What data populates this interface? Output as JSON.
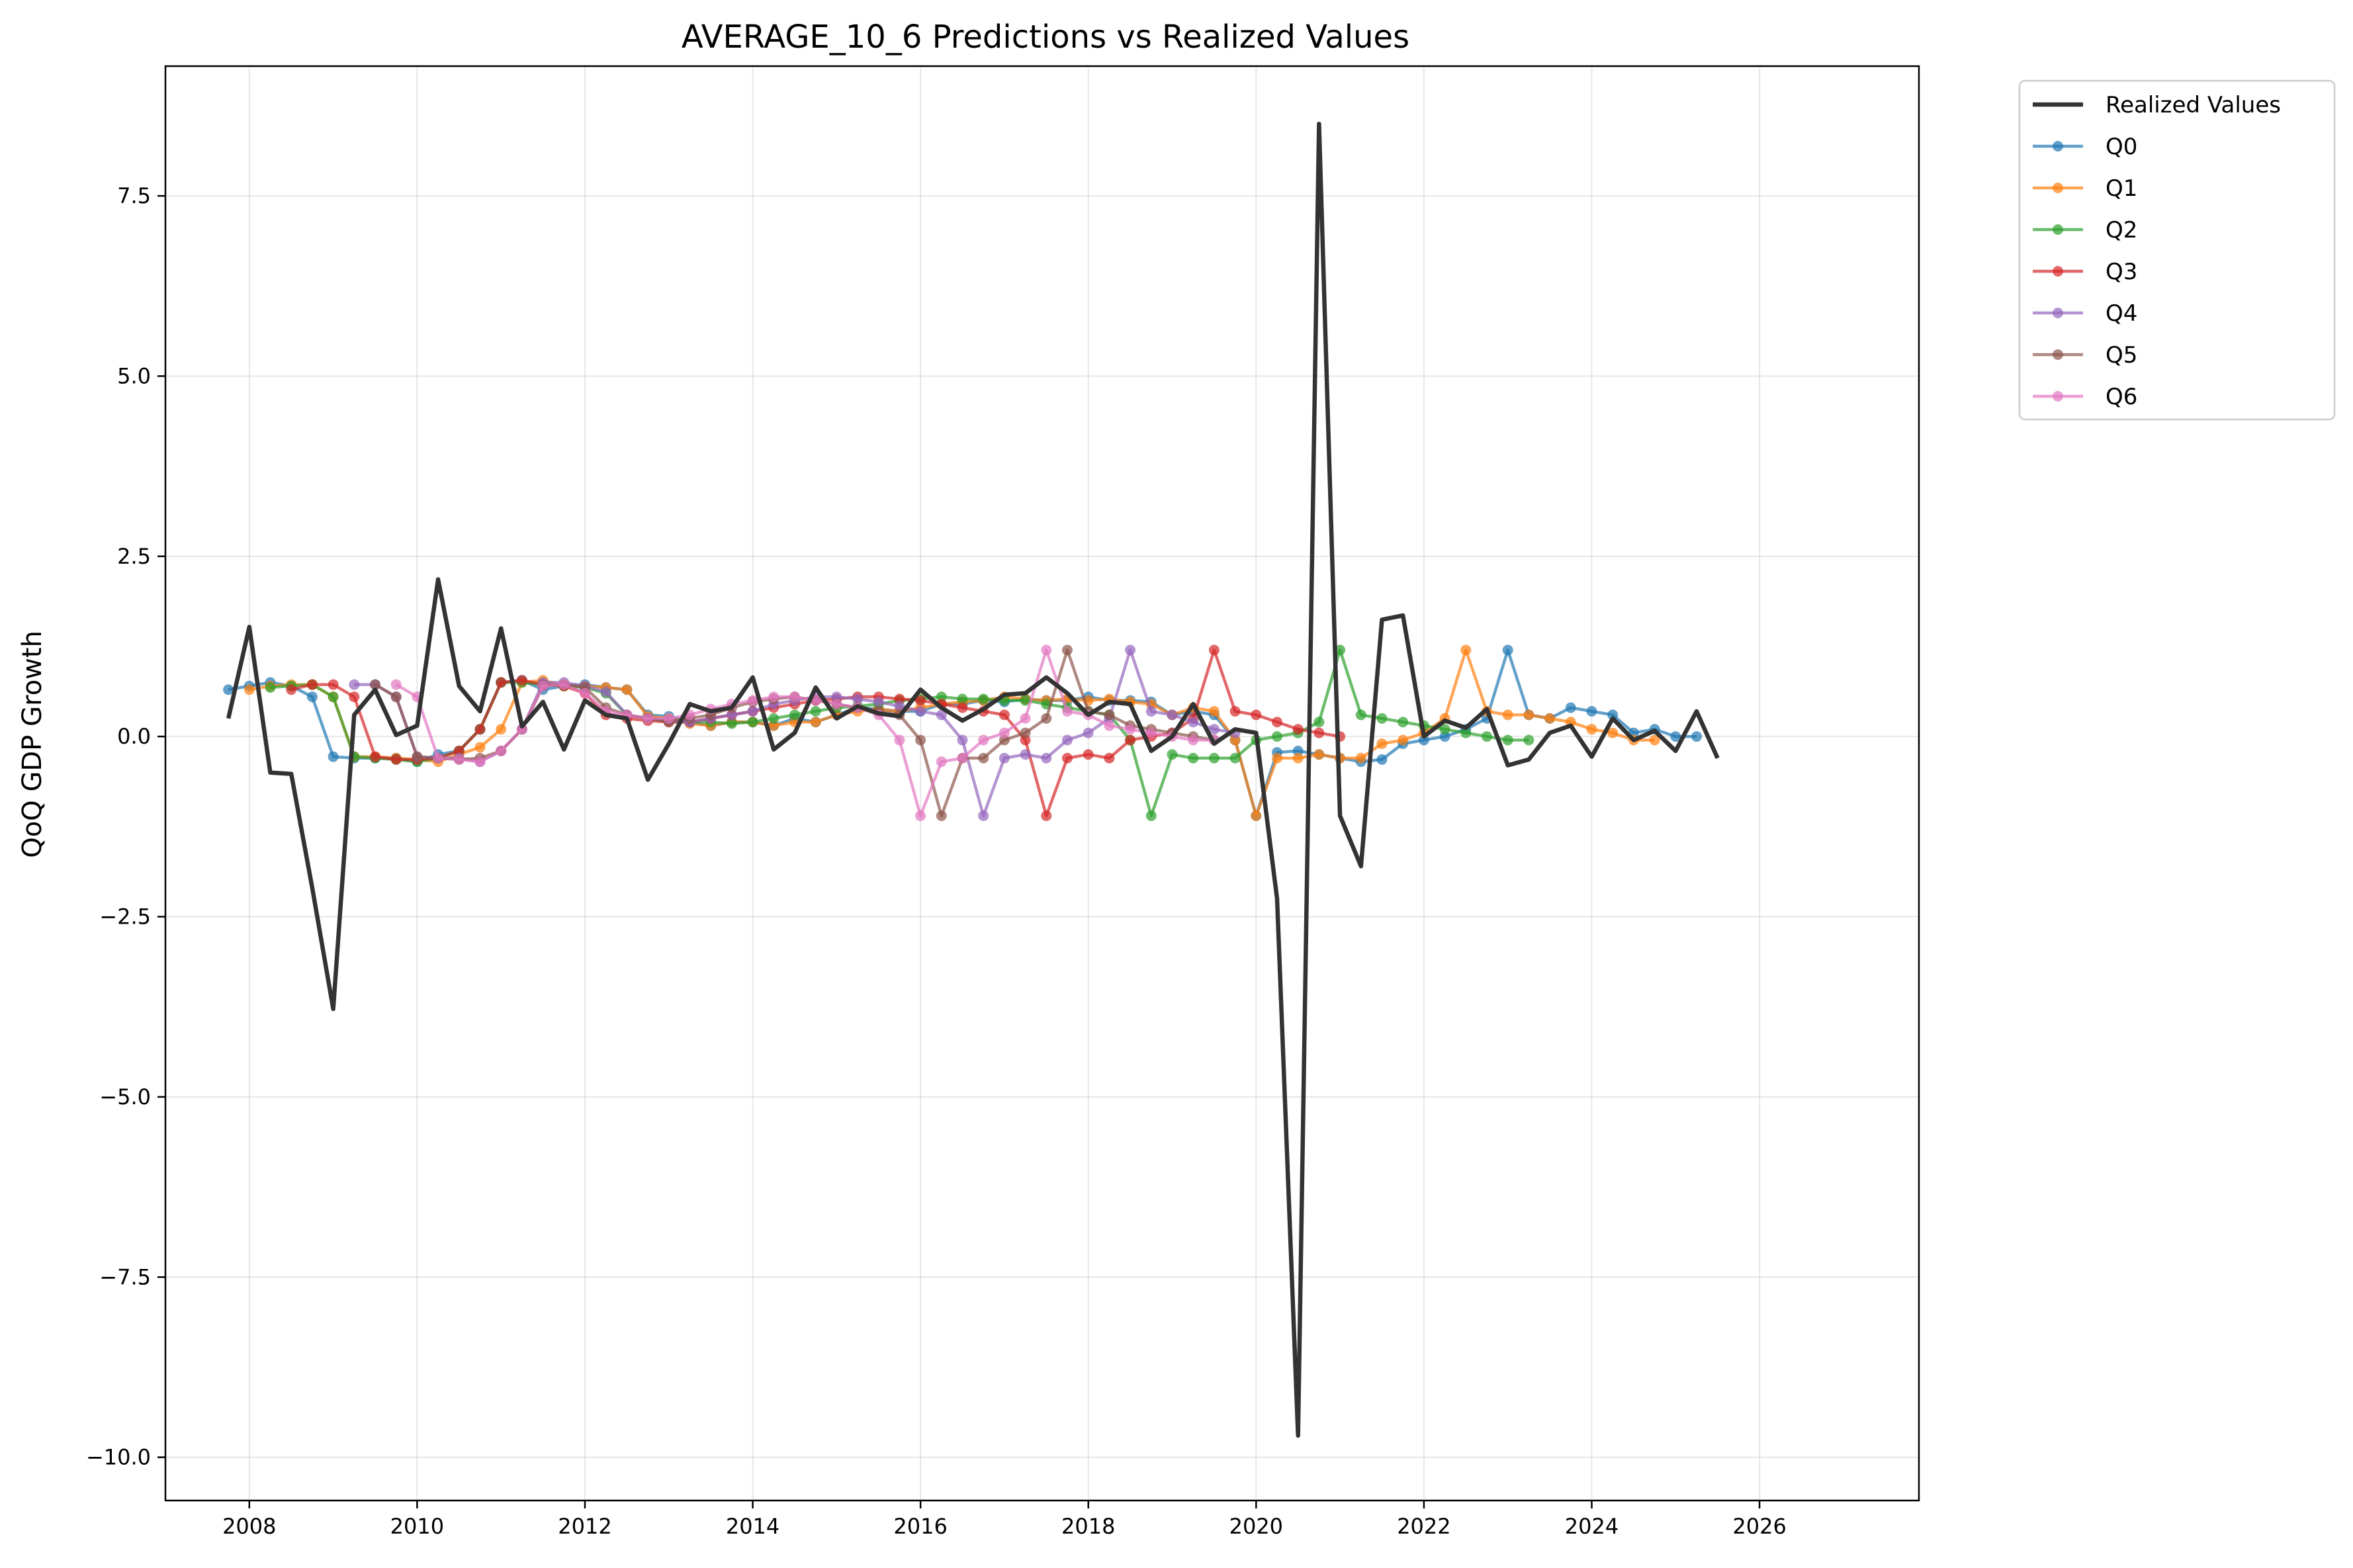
{
  "chart_data": {
    "type": "line",
    "title": "AVERAGE_10_6 Predictions vs Realized Values",
    "xlabel": "",
    "ylabel": "QoQ GDP Growth",
    "xlim": [
      2007.0,
      2027.9
    ],
    "ylim": [
      -10.6,
      9.3
    ],
    "x_ticks": [
      2008,
      2010,
      2012,
      2014,
      2016,
      2018,
      2020,
      2022,
      2024,
      2026
    ],
    "x_tick_labels": [
      "2008",
      "2010",
      "2012",
      "2014",
      "2016",
      "2018",
      "2020",
      "2022",
      "2024",
      "2026"
    ],
    "y_ticks": [
      7.5,
      5.0,
      2.5,
      0.0,
      -2.5,
      -5.0,
      -7.5,
      -10.0
    ],
    "y_tick_labels": [
      "7.5",
      "5.0",
      "2.5",
      "0.0",
      "−2.5",
      "−5.0",
      "−7.5",
      "−10.0"
    ],
    "grid": true,
    "legend_position": "outside-top-right",
    "realized": {
      "name": "Realized Values",
      "color": "#333333",
      "start": "2007-10",
      "values": [
        0.25,
        1.52,
        -0.5,
        -0.52,
        -2.1,
        -3.78,
        0.3,
        0.65,
        0.02,
        0.15,
        2.18,
        0.7,
        0.35,
        1.5,
        0.14,
        0.48,
        -0.18,
        0.5,
        0.3,
        0.25,
        -0.6,
        -0.1,
        0.45,
        0.35,
        0.4,
        0.82,
        -0.18,
        0.05,
        0.68,
        0.25,
        0.42,
        0.32,
        0.28,
        0.65,
        0.4,
        0.22,
        0.38,
        0.58,
        0.6,
        0.82,
        0.6,
        0.3,
        0.48,
        0.45,
        -0.2,
        0.0,
        0.45,
        -0.1,
        0.1,
        0.05,
        -2.25,
        -9.7,
        8.5,
        -1.1,
        -1.8,
        1.62,
        1.68,
        0.0,
        0.22,
        0.12,
        0.38,
        -0.4,
        -0.32,
        0.05,
        0.15,
        -0.28,
        0.25,
        -0.05,
        0.08,
        -0.2,
        0.35,
        -0.3
      ]
    },
    "prediction_series": [
      {
        "name": "Q0",
        "color": "#1f77b4",
        "start": "2007-10",
        "values": [
          0.65,
          0.7,
          0.75,
          0.7,
          0.55,
          -0.28,
          -0.3,
          -0.3,
          -0.3,
          -0.35,
          -0.25,
          -0.2,
          0.1,
          0.75,
          0.78,
          0.65,
          0.7,
          0.72,
          0.68,
          0.65,
          0.3,
          0.28,
          0.2,
          0.15,
          0.2,
          0.2,
          0.15,
          0.25,
          0.2,
          0.3,
          0.4,
          0.38,
          0.35,
          0.35,
          0.45,
          0.45,
          0.5,
          0.48,
          0.52,
          0.5,
          0.5,
          0.55,
          0.5,
          0.5,
          0.48,
          0.3,
          0.35,
          0.3,
          -0.05,
          -1.1,
          -0.22,
          -0.2,
          -0.25,
          -0.3,
          -0.35,
          -0.32,
          -0.1,
          -0.05,
          0.0,
          0.1,
          0.25,
          1.2,
          0.3,
          0.25,
          0.4,
          0.35,
          0.3,
          0.05,
          0.1,
          0.0,
          0.0
        ]
      },
      {
        "name": "Q1",
        "color": "#ff7f0e",
        "start": "2008-01",
        "values": [
          0.65,
          0.7,
          0.72,
          0.72,
          0.55,
          -0.28,
          -0.28,
          -0.3,
          -0.32,
          -0.35,
          -0.25,
          -0.15,
          0.1,
          0.75,
          0.78,
          0.7,
          0.7,
          0.68,
          0.65,
          0.28,
          0.25,
          0.18,
          0.15,
          0.2,
          0.2,
          0.15,
          0.2,
          0.2,
          0.3,
          0.35,
          0.38,
          0.35,
          0.4,
          0.45,
          0.48,
          0.5,
          0.55,
          0.52,
          0.5,
          0.52,
          0.5,
          0.52,
          0.48,
          0.45,
          0.3,
          0.4,
          0.35,
          -0.05,
          -1.1,
          -0.3,
          -0.3,
          -0.25,
          -0.3,
          -0.3,
          -0.1,
          -0.05,
          0.05,
          0.25,
          1.2,
          0.35,
          0.3,
          0.3,
          0.25,
          0.2,
          0.1,
          0.05,
          -0.05,
          -0.05
        ]
      },
      {
        "name": "Q2",
        "color": "#2ca02c",
        "start": "2008-04",
        "values": [
          0.68,
          0.7,
          0.72,
          0.55,
          -0.28,
          -0.3,
          -0.32,
          -0.35,
          -0.3,
          -0.2,
          0.1,
          0.75,
          0.75,
          0.72,
          0.7,
          0.68,
          0.6,
          0.3,
          0.25,
          0.2,
          0.2,
          0.2,
          0.18,
          0.2,
          0.25,
          0.3,
          0.35,
          0.4,
          0.42,
          0.45,
          0.5,
          0.52,
          0.55,
          0.52,
          0.52,
          0.5,
          0.5,
          0.45,
          0.4,
          0.35,
          0.3,
          -0.05,
          -1.1,
          -0.25,
          -0.3,
          -0.3,
          -0.3,
          -0.05,
          0.0,
          0.05,
          0.2,
          1.2,
          0.3,
          0.25,
          0.2,
          0.15,
          0.1,
          0.05,
          0.0,
          -0.05,
          -0.05
        ]
      },
      {
        "name": "Q3",
        "color": "#d62728",
        "start": "2008-07",
        "values": [
          0.65,
          0.72,
          0.72,
          0.55,
          -0.28,
          -0.32,
          -0.32,
          -0.3,
          -0.2,
          0.1,
          0.75,
          0.78,
          0.72,
          0.7,
          0.6,
          0.3,
          0.25,
          0.22,
          0.2,
          0.2,
          0.25,
          0.3,
          0.35,
          0.4,
          0.45,
          0.5,
          0.52,
          0.55,
          0.55,
          0.52,
          0.5,
          0.45,
          0.4,
          0.35,
          0.3,
          -0.05,
          -1.1,
          -0.3,
          -0.25,
          -0.3,
          -0.05,
          0.0,
          0.05,
          0.25,
          1.2,
          0.35,
          0.3,
          0.2,
          0.1,
          0.05,
          0.0
        ]
      },
      {
        "name": "Q4",
        "color": "#9467bd",
        "start": "2009-04",
        "values": [
          0.72,
          0.72,
          0.55,
          -0.28,
          -0.3,
          -0.3,
          -0.35,
          -0.2,
          0.1,
          0.75,
          0.75,
          0.7,
          0.62,
          0.3,
          0.25,
          0.22,
          0.2,
          0.25,
          0.3,
          0.35,
          0.45,
          0.5,
          0.55,
          0.55,
          0.52,
          0.48,
          0.42,
          0.35,
          0.3,
          -0.05,
          -1.1,
          -0.3,
          -0.25,
          -0.3,
          -0.05,
          0.05,
          0.25,
          1.2,
          0.35,
          0.3,
          0.2,
          0.1,
          0.05
        ]
      },
      {
        "name": "Q5",
        "color": "#8c564b",
        "start": "2009-07",
        "values": [
          0.72,
          0.55,
          -0.28,
          -0.3,
          -0.32,
          -0.3,
          -0.2,
          0.1,
          0.7,
          0.72,
          0.68,
          0.4,
          0.3,
          0.25,
          0.22,
          0.25,
          0.3,
          0.4,
          0.48,
          0.52,
          0.55,
          0.5,
          0.45,
          0.4,
          0.35,
          0.3,
          -0.05,
          -1.1,
          -0.3,
          -0.3,
          -0.05,
          0.05,
          0.25,
          1.2,
          0.35,
          0.3,
          0.15,
          0.1,
          0.05,
          0.0,
          -0.05
        ]
      },
      {
        "name": "Q6",
        "color": "#e377c2",
        "start": "2009-10",
        "values": [
          0.72,
          0.55,
          -0.3,
          -0.32,
          -0.35,
          -0.2,
          0.1,
          0.7,
          0.72,
          0.6,
          0.35,
          0.3,
          0.25,
          0.25,
          0.3,
          0.38,
          0.45,
          0.5,
          0.55,
          0.55,
          0.5,
          0.45,
          0.4,
          0.3,
          -0.05,
          -1.1,
          -0.35,
          -0.3,
          -0.05,
          0.05,
          0.25,
          1.2,
          0.35,
          0.3,
          0.15,
          0.1,
          0.05,
          0.0,
          -0.05,
          -0.05
        ]
      }
    ]
  },
  "legend": {
    "items": [
      "Realized Values",
      "Q0",
      "Q1",
      "Q2",
      "Q3",
      "Q4",
      "Q5",
      "Q6"
    ]
  }
}
